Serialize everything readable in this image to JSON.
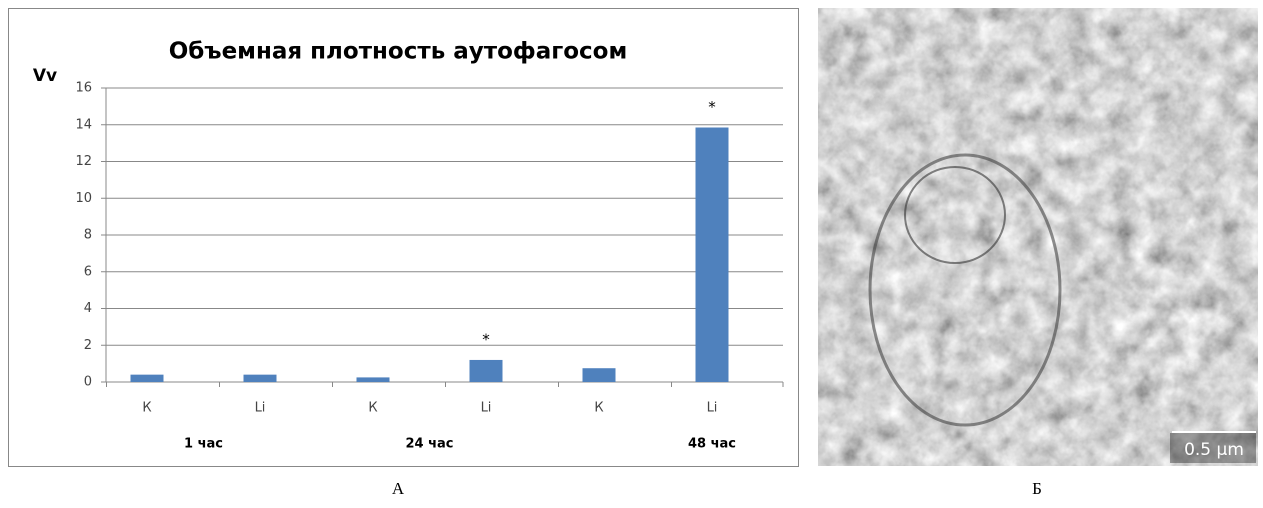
{
  "chart_data": {
    "type": "bar",
    "title": "Объемная плотность аутофагосом",
    "y_label": "Vv",
    "categories": [
      "К",
      "Li",
      "К",
      "Li",
      "К",
      "Li"
    ],
    "groups": [
      "1 час",
      "24 час",
      "48 час"
    ],
    "values": [
      0.4,
      0.4,
      0.25,
      1.2,
      0.75,
      13.85
    ],
    "color": "#4f81bd",
    "annotations": [
      {
        "category": 3,
        "text": "*"
      },
      {
        "category": 5,
        "text": "*"
      }
    ],
    "ylim": [
      0,
      16
    ],
    "yticks": [
      0,
      2,
      4,
      6,
      8,
      10,
      12,
      14,
      16
    ],
    "grid": true
  },
  "figure": {
    "panel_labels": [
      "А",
      "Б"
    ],
    "scale_bar": "0.5 µm"
  }
}
